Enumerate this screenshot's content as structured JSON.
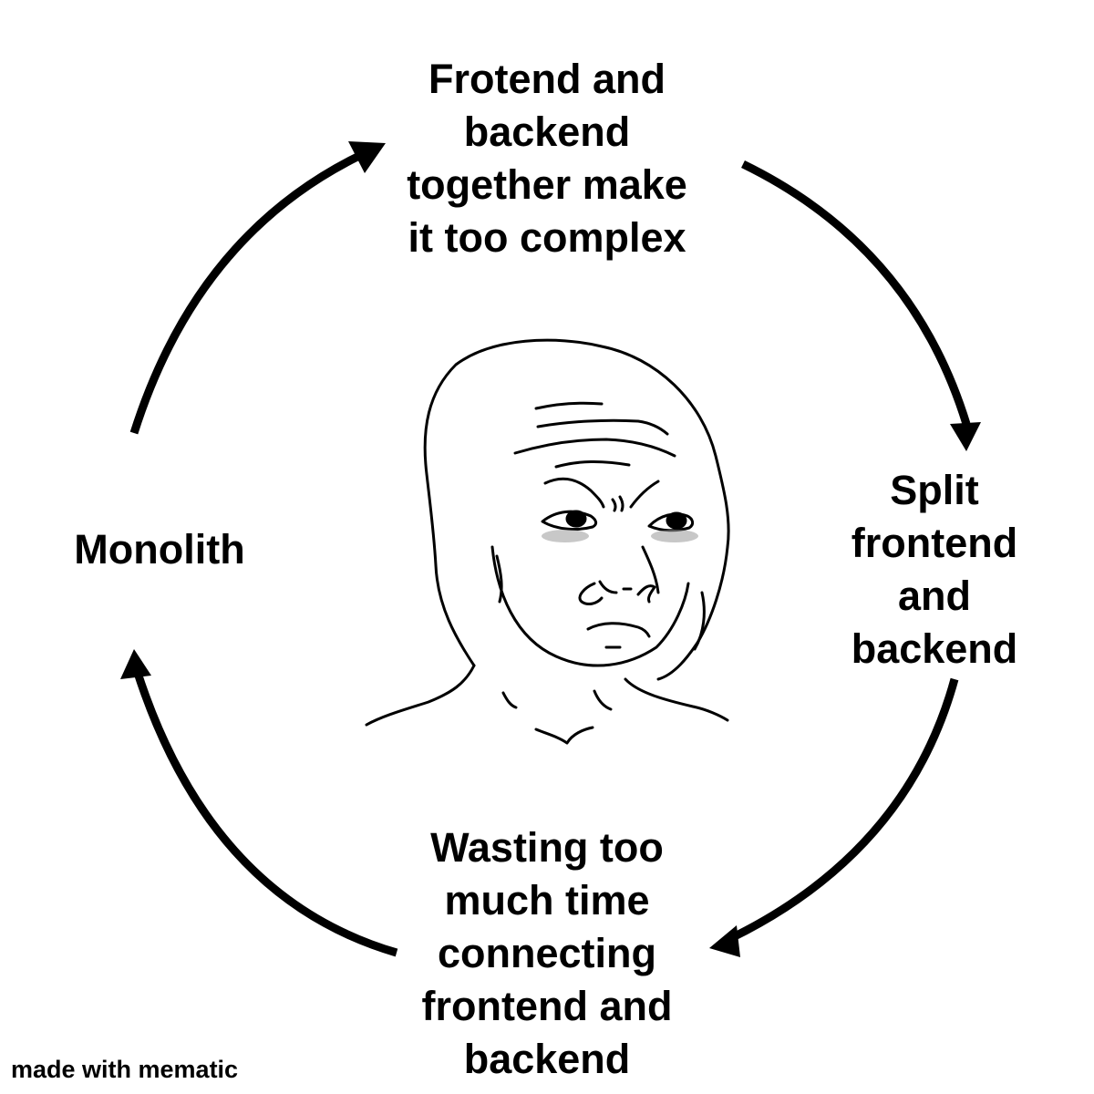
{
  "diagram": {
    "type": "cycle",
    "stages": [
      {
        "lines": [
          "Frotend and",
          "backend",
          "together make",
          "it too complex"
        ]
      },
      {
        "lines": [
          "Split",
          "frontend",
          "and",
          "backend"
        ]
      },
      {
        "lines": [
          "Wasting too",
          "much time",
          "connecting",
          "frontend and",
          "backend"
        ]
      },
      {
        "lines": [
          "Monolith"
        ]
      }
    ],
    "center_image": "sad-wojak-face",
    "arrow_color": "#000000"
  },
  "watermark": "made with mematic"
}
